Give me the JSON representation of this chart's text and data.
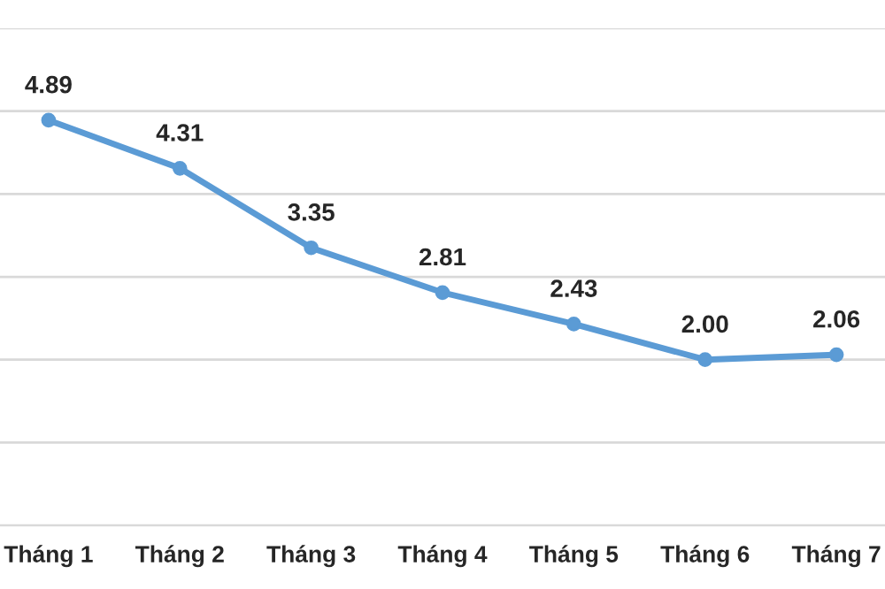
{
  "chart_data": {
    "type": "line",
    "categories": [
      "Tháng 1",
      "Tháng 2",
      "Tháng 3",
      "Tháng 4",
      "Tháng 5",
      "Tháng 6",
      "Tháng 7"
    ],
    "series": [
      {
        "color": "#5b9bd5",
        "values": [
          4.89,
          4.31,
          3.35,
          2.81,
          2.43,
          2.0,
          2.06
        ],
        "value_labels": [
          "4.89",
          "4.31",
          "3.35",
          "2.81",
          "2.43",
          "2.00",
          "2.06"
        ]
      }
    ],
    "ylim": [
      0,
      6
    ],
    "yticks": [
      {
        "value": 0,
        "label": null
      },
      {
        "value": 1,
        "label": null
      },
      {
        "value": 2,
        "label": null
      },
      {
        "value": 3,
        "label": null
      },
      {
        "value": 4,
        "label": null
      },
      {
        "value": 5,
        "label": null
      },
      {
        "value": 6,
        "label": null
      }
    ],
    "grid": "y",
    "tick_labels": "x",
    "marker": "circle",
    "line_style": "solid",
    "legend": false
  }
}
